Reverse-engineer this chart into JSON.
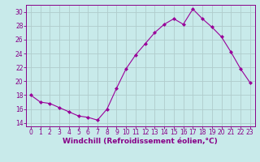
{
  "x": [
    0,
    1,
    2,
    3,
    4,
    5,
    6,
    7,
    8,
    9,
    10,
    11,
    12,
    13,
    14,
    15,
    16,
    17,
    18,
    19,
    20,
    21,
    22,
    23
  ],
  "y": [
    18.0,
    17.0,
    16.8,
    16.2,
    15.6,
    15.0,
    14.8,
    14.4,
    16.0,
    19.0,
    21.8,
    23.8,
    25.4,
    27.0,
    28.2,
    29.0,
    28.2,
    30.4,
    29.0,
    27.8,
    26.4,
    24.2,
    21.8,
    19.8
  ],
  "line_color": "#990099",
  "marker": "D",
  "marker_size": 2,
  "bg_color": "#c8eaea",
  "grid_color": "#b0cccc",
  "xlabel": "Windchill (Refroidissement éolien,°C)",
  "ylim": [
    13.5,
    31.0
  ],
  "xlim": [
    -0.5,
    23.5
  ],
  "yticks": [
    14,
    16,
    18,
    20,
    22,
    24,
    26,
    28,
    30
  ],
  "xticks": [
    0,
    1,
    2,
    3,
    4,
    5,
    6,
    7,
    8,
    9,
    10,
    11,
    12,
    13,
    14,
    15,
    16,
    17,
    18,
    19,
    20,
    21,
    22,
    23
  ],
  "tick_color": "#880088",
  "label_color": "#880088",
  "tick_fontsize": 5.5,
  "xlabel_fontsize": 6.5
}
